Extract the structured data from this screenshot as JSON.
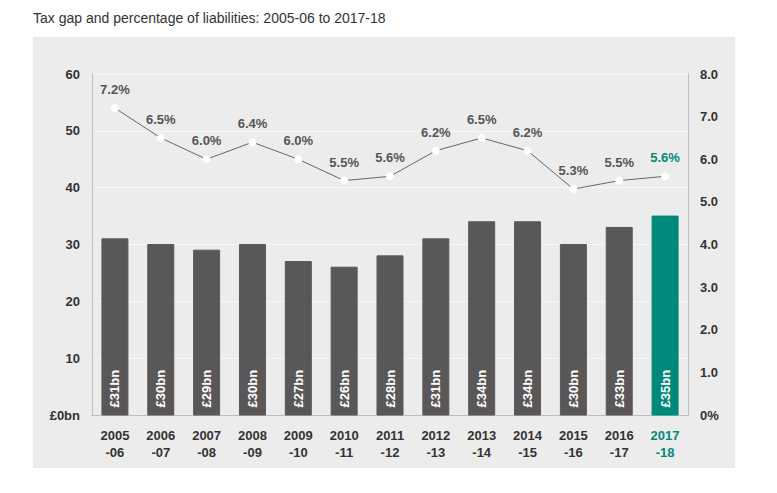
{
  "chart_data": {
    "type": "bar",
    "title": "Tax gap and percentage of liabilities: 2005-06 to 2017-18",
    "categories": [
      "2005-06",
      "2006-07",
      "2007-08",
      "2008-09",
      "2009-10",
      "2010-11",
      "2011-12",
      "2012-13",
      "2013-14",
      "2014-15",
      "2015-16",
      "2016-17",
      "2017-18"
    ],
    "series": [
      {
        "name": "Tax gap",
        "type": "bar",
        "values": [
          31,
          30,
          29,
          30,
          27,
          26,
          28,
          31,
          34,
          34,
          30,
          33,
          35
        ],
        "value_labels": [
          "£31bn",
          "£30bn",
          "£29bn",
          "£30bn",
          "£27bn",
          "£26bn",
          "£28bn",
          "£31bn",
          "£34bn",
          "£34bn",
          "£30bn",
          "£33bn",
          "£35bn"
        ],
        "colors": [
          "#5a5758",
          "#5a5758",
          "#5a5758",
          "#5a5758",
          "#5a5758",
          "#5a5758",
          "#5a5758",
          "#5a5758",
          "#5a5758",
          "#5a5758",
          "#5a5758",
          "#5a5758",
          "#00897b"
        ]
      },
      {
        "name": "Percentage of liabilities",
        "type": "line",
        "axis": "y2",
        "marker": "circle",
        "line_style": "solid",
        "values": [
          7.2,
          6.5,
          6.0,
          6.4,
          6.0,
          5.5,
          5.6,
          6.2,
          6.5,
          6.2,
          5.3,
          5.5,
          5.6
        ],
        "value_labels": [
          "7.2%",
          "6.5%",
          "6.0%",
          "6.4%",
          "6.0%",
          "5.5%",
          "5.6%",
          "6.2%",
          "6.5%",
          "6.2%",
          "5.3%",
          "5.5%",
          "5.6%"
        ],
        "colors": [
          "#555555",
          "#555555",
          "#555555",
          "#555555",
          "#555555",
          "#555555",
          "#555555",
          "#555555",
          "#555555",
          "#555555",
          "#555555",
          "#555555",
          "#00897b"
        ]
      }
    ],
    "ylim": [
      0,
      60
    ],
    "yticks": [
      {
        "value": 0,
        "label": "£0bn"
      },
      10,
      20,
      30,
      40,
      50,
      60
    ],
    "y2lim": [
      0,
      8
    ],
    "y2ticks": [
      {
        "value": 0,
        "label": "0%"
      },
      {
        "value": 1,
        "label": "1.0"
      },
      {
        "value": 2,
        "label": "2.0"
      },
      {
        "value": 3,
        "label": "3.0"
      },
      {
        "value": 4,
        "label": "4.0"
      },
      {
        "value": 5,
        "label": "5.0"
      },
      {
        "value": 6,
        "label": "6.0"
      },
      {
        "value": 7,
        "label": "7.0"
      },
      {
        "value": 8,
        "label": "8.0"
      }
    ],
    "grid": true,
    "data_labels": true
  }
}
